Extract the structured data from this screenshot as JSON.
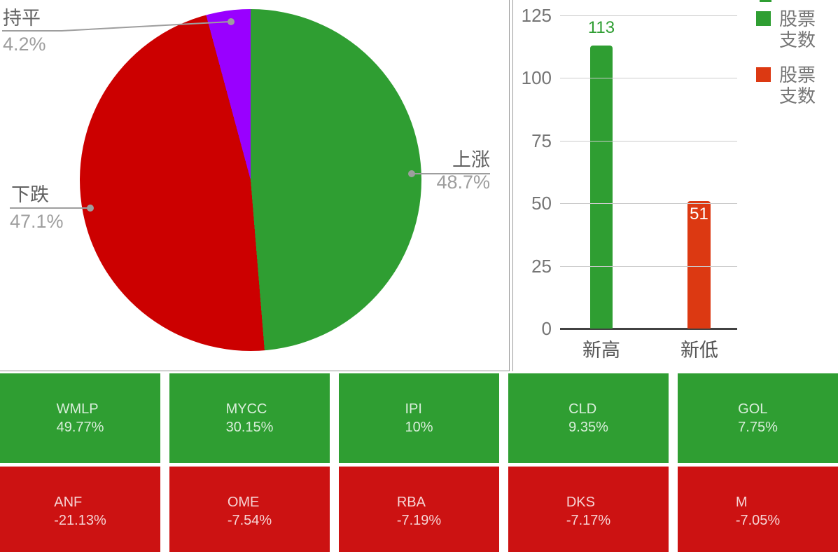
{
  "colors": {
    "green": "#2F9E32",
    "pie_red": "#CC0000",
    "purple": "#9900FF",
    "bar_orange_red": "#DC3912",
    "tile_green": "#2F9E32",
    "tile_red": "#CC1212",
    "grid_line": "#CCCCCC",
    "axis_line": "#424242",
    "label_gray": "#757575",
    "leader_line_gray": "#9E9E9E"
  },
  "chart_data": [
    {
      "type": "pie",
      "title": "",
      "direction": "clockwise",
      "start_angle_deg": 0,
      "labels": "outside-with-leader-lines",
      "legend_position": "none",
      "slices": [
        {
          "label": "上涨",
          "value": 48.7,
          "pct": "48.7%",
          "color": "#2F9E32"
        },
        {
          "label": "下跌",
          "value": 47.1,
          "pct": "47.1%",
          "color": "#CC0000"
        },
        {
          "label": "持平",
          "value": 4.2,
          "pct": "4.2%",
          "color": "#9900FF"
        }
      ]
    },
    {
      "type": "bar",
      "title": "",
      "categories": [
        "新高",
        "新低"
      ],
      "values": [
        113,
        51
      ],
      "value_labels": [
        "113",
        "51"
      ],
      "bar_colors": [
        "#2F9E32",
        "#DC3912"
      ],
      "ylim": [
        0,
        125
      ],
      "yticks": [
        0,
        25,
        50,
        75,
        100,
        125
      ],
      "grid": true,
      "legend_position": "top-right",
      "legend": [
        {
          "label": "股票支数",
          "color": "#2F9E32"
        },
        {
          "label": "股票支数",
          "color": "#DC3912"
        }
      ]
    }
  ],
  "tiles": {
    "gainers": [
      {
        "symbol": "WMLP",
        "change": "49.77%"
      },
      {
        "symbol": "MYCC",
        "change": "30.15%"
      },
      {
        "symbol": "IPI",
        "change": "10%"
      },
      {
        "symbol": "CLD",
        "change": "9.35%"
      },
      {
        "symbol": "GOL",
        "change": "7.75%"
      }
    ],
    "losers": [
      {
        "symbol": "ANF",
        "change": "-21.13%"
      },
      {
        "symbol": "OME",
        "change": "-7.54%"
      },
      {
        "symbol": "RBA",
        "change": "-7.19%"
      },
      {
        "symbol": "DKS",
        "change": "-7.17%"
      },
      {
        "symbol": "M",
        "change": "-7.05%"
      }
    ]
  }
}
